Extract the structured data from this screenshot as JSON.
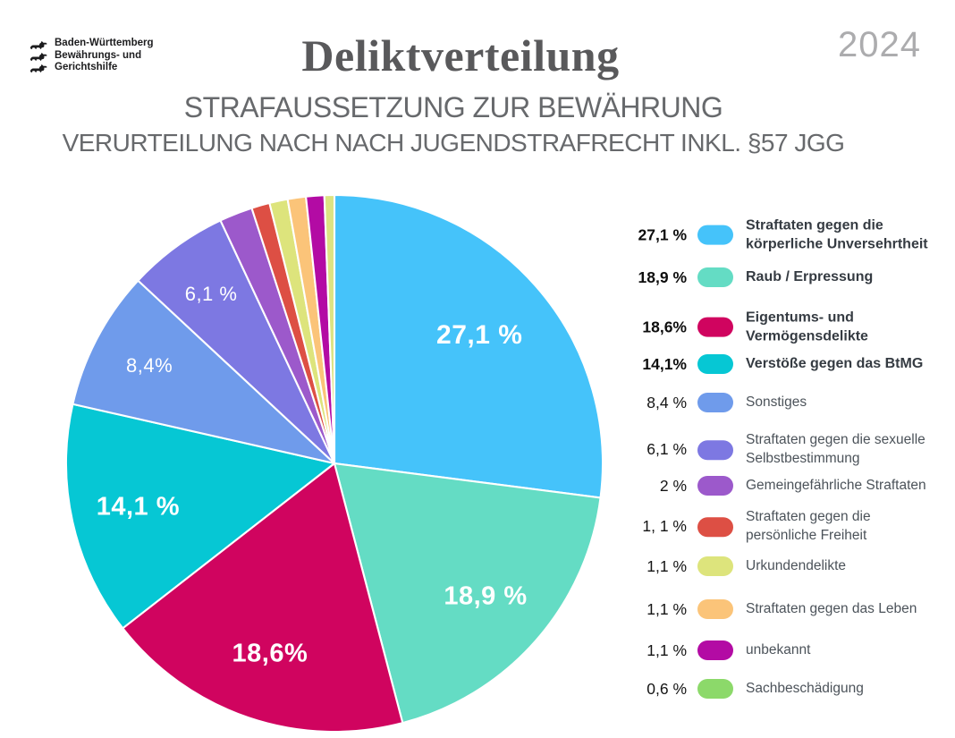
{
  "header": {
    "title": "Deliktverteilung",
    "subtitle1": "STRAFAUSSETZUNG ZUR BEWÄHRUNG",
    "subtitle2": "VERURTEILUNG NACH NACH JUGENDSTRAFRECHT INKL. §57 JGG",
    "year": "2024"
  },
  "logo": {
    "line1": "Baden-Württemberg",
    "line2": "Bewährungs- und",
    "line3": "Gerichtshilfe"
  },
  "chart_data": {
    "type": "pie",
    "title": "Deliktverteilung",
    "start_position": "12-oclock",
    "direction": "clockwise",
    "legend_position": "right",
    "legend_bold_count": 4,
    "slices": [
      {
        "label": "Straftaten gegen die körperliche Unversehrtheit",
        "value": 27.1,
        "display": "27,1 %",
        "pie_label": "27,1 %",
        "color": "#45C3FA"
      },
      {
        "label": "Raub / Erpressung",
        "value": 18.9,
        "display": "18,9 %",
        "pie_label": "18,9 %",
        "color": "#64DCC4"
      },
      {
        "label": "Eigentums- und Vermögensdelikte",
        "value": 18.6,
        "display": "18,6%",
        "pie_label": "18,6%",
        "color": "#D0045F"
      },
      {
        "label": "Verstöße gegen das BtMG",
        "value": 14.1,
        "display": "14,1%",
        "pie_label": "14,1 %",
        "color": "#06C7D4"
      },
      {
        "label": "Sonstiges",
        "value": 8.4,
        "display": "8,4 %",
        "pie_label": "8,4%",
        "color": "#6F9BEB"
      },
      {
        "label": "Straftaten gegen die sexuelle Selbstbestimmung",
        "value": 6.1,
        "display": "6,1 %",
        "pie_label": "6,1 %",
        "color": "#7D78E2"
      },
      {
        "label": "Gemeingefährliche Straftaten",
        "value": 2,
        "display": "2 %",
        "pie_label": null,
        "color": "#9C59CB"
      },
      {
        "label": "Straftaten gegen die persönliche Freiheit",
        "value": 1.1,
        "display": "1, 1 %",
        "pie_label": null,
        "color": "#DD4F44"
      },
      {
        "label": "Urkundendelikte",
        "value": 1.1,
        "display": "1,1 %",
        "pie_label": null,
        "color": "#DDE47C"
      },
      {
        "label": "Straftaten gegen das Leben",
        "value": 1.1,
        "display": "1,1 %",
        "pie_label": null,
        "color": "#FBC479"
      },
      {
        "label": "unbekannt",
        "value": 1.1,
        "display": "1,1 %",
        "pie_label": null,
        "color": "#B30BA4"
      },
      {
        "label": "Sachbeschädigung",
        "value": 0.6,
        "display": "0,6 %",
        "pie_label": null,
        "color": "#8CD96A",
        "pie_color": "#DCE382"
      }
    ]
  }
}
